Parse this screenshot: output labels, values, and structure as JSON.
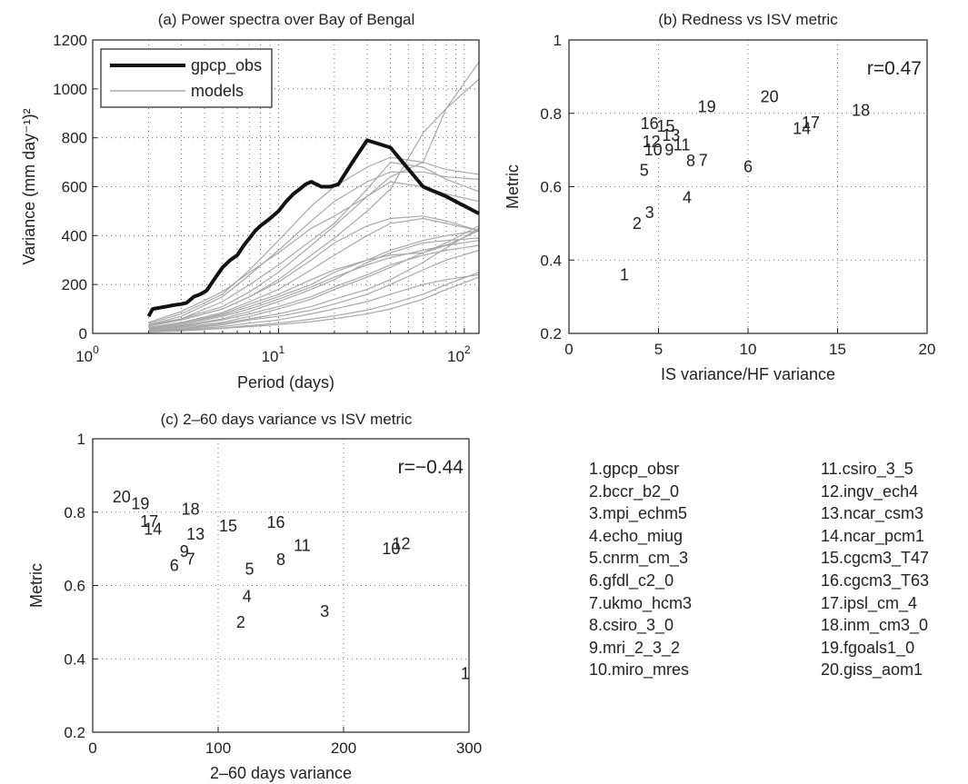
{
  "chart_data": [
    {
      "id": "a",
      "type": "line",
      "title": "(a) Power spectra over Bay of Bengal",
      "xlabel": "Period (days)",
      "ylabel": "Variance (mm day⁻¹)²",
      "xscale": "log",
      "xlim": [
        1,
        120
      ],
      "ylim": [
        0,
        1200
      ],
      "xticks": [
        1,
        10,
        100
      ],
      "xtick_labels": [
        {
          "base": "10",
          "exp": "0"
        },
        {
          "base": "10",
          "exp": "1"
        },
        {
          "base": "10",
          "exp": "2"
        }
      ],
      "yticks": [
        0,
        200,
        400,
        600,
        800,
        1000,
        1200
      ],
      "grid": true,
      "legend": {
        "position": "top-left",
        "entries": [
          "gpcp_obs",
          "models"
        ]
      },
      "colors": {
        "obs": "#111111",
        "models": "#a8a8a8"
      },
      "series": [
        {
          "name": "gpcp_obs",
          "x": [
            2,
            2.1,
            2.3,
            2.5,
            2.7,
            3,
            3.2,
            3.5,
            3.8,
            4.1,
            4.5,
            5,
            5.5,
            6,
            6.5,
            7,
            7.5,
            8,
            9,
            10,
            11,
            12,
            13,
            14,
            15,
            17,
            19,
            21,
            25,
            30,
            40,
            60,
            80,
            120
          ],
          "y": [
            70,
            100,
            105,
            110,
            115,
            120,
            125,
            150,
            160,
            175,
            220,
            270,
            300,
            320,
            360,
            390,
            420,
            440,
            470,
            500,
            540,
            570,
            590,
            610,
            620,
            600,
            600,
            610,
            700,
            790,
            760,
            600,
            560,
            490
          ]
        },
        {
          "name": "models",
          "x": [
            2,
            3,
            5,
            7,
            10,
            15,
            20,
            30,
            40,
            60,
            80,
            120
          ],
          "y": [
            35,
            60,
            110,
            170,
            250,
            360,
            440,
            560,
            640,
            700,
            920,
            1110
          ]
        },
        {
          "name": "models",
          "x": [
            2,
            3,
            5,
            7,
            10,
            15,
            20,
            30,
            40,
            60,
            80,
            120
          ],
          "y": [
            30,
            55,
            100,
            150,
            220,
            320,
            390,
            500,
            590,
            820,
            920,
            1040
          ]
        },
        {
          "name": "models",
          "x": [
            2,
            3,
            5,
            7,
            10,
            15,
            20,
            30,
            40,
            60,
            80,
            120
          ],
          "y": [
            40,
            80,
            160,
            260,
            380,
            520,
            600,
            680,
            720,
            700,
            670,
            650
          ]
        },
        {
          "name": "models",
          "x": [
            2,
            3,
            5,
            7,
            10,
            15,
            20,
            30,
            40,
            60,
            80,
            120
          ],
          "y": [
            35,
            70,
            150,
            240,
            340,
            460,
            540,
            620,
            660,
            660,
            640,
            630
          ]
        },
        {
          "name": "models",
          "x": [
            2,
            3,
            5,
            7,
            10,
            15,
            20,
            30,
            40,
            60,
            80,
            120
          ],
          "y": [
            45,
            90,
            170,
            250,
            330,
            430,
            480,
            560,
            620,
            600,
            570,
            540
          ]
        },
        {
          "name": "models",
          "x": [
            2,
            3,
            5,
            7,
            10,
            15,
            20,
            30,
            40,
            60,
            80,
            120
          ],
          "y": [
            30,
            60,
            130,
            200,
            280,
            380,
            450,
            590,
            700,
            680,
            630,
            580
          ]
        },
        {
          "name": "models",
          "x": [
            2,
            3,
            5,
            7,
            10,
            15,
            20,
            30,
            40,
            60,
            80,
            120
          ],
          "y": [
            30,
            55,
            100,
            150,
            210,
            300,
            370,
            440,
            470,
            480,
            460,
            420
          ]
        },
        {
          "name": "models",
          "x": [
            2,
            3,
            5,
            7,
            10,
            15,
            20,
            30,
            40,
            60,
            80,
            120
          ],
          "y": [
            25,
            45,
            85,
            130,
            180,
            260,
            320,
            400,
            450,
            470,
            450,
            420
          ]
        },
        {
          "name": "models",
          "x": [
            2,
            3,
            5,
            7,
            10,
            15,
            20,
            30,
            40,
            60,
            80,
            120
          ],
          "y": [
            20,
            40,
            80,
            120,
            160,
            220,
            260,
            300,
            320,
            330,
            360,
            420
          ]
        },
        {
          "name": "models",
          "x": [
            2,
            3,
            5,
            7,
            10,
            15,
            20,
            30,
            40,
            60,
            80,
            120
          ],
          "y": [
            22,
            40,
            75,
            110,
            150,
            200,
            250,
            300,
            340,
            380,
            400,
            420
          ]
        },
        {
          "name": "models",
          "x": [
            2,
            3,
            5,
            7,
            10,
            15,
            20,
            30,
            40,
            60,
            80,
            120
          ],
          "y": [
            18,
            35,
            70,
            100,
            140,
            190,
            230,
            280,
            310,
            340,
            360,
            380
          ]
        },
        {
          "name": "models",
          "x": [
            2,
            3,
            5,
            7,
            10,
            15,
            20,
            30,
            40,
            60,
            80,
            120
          ],
          "y": [
            15,
            28,
            55,
            80,
            110,
            150,
            190,
            240,
            280,
            320,
            340,
            360
          ]
        },
        {
          "name": "models",
          "x": [
            2,
            3,
            5,
            7,
            10,
            15,
            20,
            30,
            40,
            60,
            80,
            120
          ],
          "y": [
            12,
            25,
            45,
            70,
            100,
            140,
            180,
            230,
            270,
            330,
            370,
            440
          ]
        },
        {
          "name": "models",
          "x": [
            2,
            3,
            5,
            7,
            10,
            15,
            20,
            30,
            40,
            60,
            80,
            120
          ],
          "y": [
            10,
            20,
            40,
            60,
            80,
            110,
            140,
            180,
            220,
            290,
            350,
            430
          ]
        },
        {
          "name": "models",
          "x": [
            2,
            3,
            5,
            7,
            10,
            15,
            20,
            30,
            40,
            60,
            80,
            120
          ],
          "y": [
            10,
            18,
            35,
            55,
            70,
            95,
            120,
            160,
            200,
            260,
            300,
            340
          ]
        },
        {
          "name": "models",
          "x": [
            2,
            3,
            5,
            7,
            10,
            15,
            20,
            30,
            40,
            60,
            80,
            120
          ],
          "y": [
            8,
            15,
            28,
            42,
            55,
            80,
            100,
            130,
            160,
            200,
            220,
            240
          ]
        },
        {
          "name": "models",
          "x": [
            2,
            3,
            5,
            7,
            10,
            15,
            20,
            30,
            40,
            60,
            80,
            120
          ],
          "y": [
            6,
            12,
            22,
            32,
            42,
            58,
            72,
            95,
            120,
            160,
            200,
            250
          ]
        },
        {
          "name": "models",
          "x": [
            2,
            3,
            5,
            7,
            10,
            15,
            20,
            30,
            40,
            60,
            80,
            120
          ],
          "y": [
            5,
            10,
            20,
            28,
            36,
            48,
            60,
            80,
            100,
            140,
            180,
            230
          ]
        },
        {
          "name": "models",
          "x": [
            2,
            3,
            5,
            7,
            10,
            15,
            20,
            30,
            40,
            60,
            80,
            120
          ],
          "y": [
            15,
            30,
            60,
            90,
            130,
            180,
            220,
            290,
            330,
            370,
            380,
            390
          ]
        }
      ]
    },
    {
      "id": "b",
      "type": "scatter",
      "title": "(b) Redness vs ISV metric",
      "xlabel": "IS variance/HF variance",
      "ylabel": "Metric",
      "xlim": [
        0,
        20
      ],
      "ylim": [
        0.2,
        1
      ],
      "xticks": [
        0,
        5,
        10,
        15,
        20
      ],
      "ytick_labels": [
        "0.2",
        "0.4",
        "0.6",
        "0.8",
        "1"
      ],
      "grid": true,
      "annotation": "r=0.47",
      "points": [
        {
          "label": "1",
          "x": 3.1,
          "y": 0.36
        },
        {
          "label": "2",
          "x": 3.8,
          "y": 0.5
        },
        {
          "label": "3",
          "x": 4.5,
          "y": 0.53
        },
        {
          "label": "4",
          "x": 6.6,
          "y": 0.57
        },
        {
          "label": "5",
          "x": 4.2,
          "y": 0.645
        },
        {
          "label": "6",
          "x": 10.0,
          "y": 0.655
        },
        {
          "label": "7",
          "x": 7.5,
          "y": 0.672
        },
        {
          "label": "8",
          "x": 6.8,
          "y": 0.67
        },
        {
          "label": "9",
          "x": 5.6,
          "y": 0.7
        },
        {
          "label": "10",
          "x": 4.7,
          "y": 0.7
        },
        {
          "label": "11",
          "x": 6.3,
          "y": 0.714
        },
        {
          "label": "12",
          "x": 4.6,
          "y": 0.722
        },
        {
          "label": "13",
          "x": 5.7,
          "y": 0.74
        },
        {
          "label": "14",
          "x": 13.0,
          "y": 0.758
        },
        {
          "label": "15",
          "x": 5.4,
          "y": 0.765
        },
        {
          "label": "16",
          "x": 4.5,
          "y": 0.772
        },
        {
          "label": "17",
          "x": 13.5,
          "y": 0.775
        },
        {
          "label": "18",
          "x": 16.3,
          "y": 0.808
        },
        {
          "label": "19",
          "x": 7.7,
          "y": 0.818
        },
        {
          "label": "20",
          "x": 11.2,
          "y": 0.845
        }
      ]
    },
    {
      "id": "c",
      "type": "scatter",
      "title": "(c) 2–60 days variance vs ISV metric",
      "xlabel": "2–60 days variance",
      "ylabel": "Metric",
      "xlim": [
        0,
        300
      ],
      "ylim": [
        0.2,
        1
      ],
      "xticks": [
        0,
        100,
        200,
        300
      ],
      "ytick_labels": [
        "0.2",
        "0.4",
        "0.6",
        "0.8",
        "1"
      ],
      "grid": true,
      "annotation": "r=−0.44",
      "points": [
        {
          "label": "1",
          "x": 297,
          "y": 0.36
        },
        {
          "label": "2",
          "x": 118,
          "y": 0.5
        },
        {
          "label": "3",
          "x": 185,
          "y": 0.53
        },
        {
          "label": "4",
          "x": 123,
          "y": 0.57
        },
        {
          "label": "5",
          "x": 125,
          "y": 0.645
        },
        {
          "label": "6",
          "x": 65,
          "y": 0.655
        },
        {
          "label": "7",
          "x": 78,
          "y": 0.672
        },
        {
          "label": "8",
          "x": 150,
          "y": 0.67
        },
        {
          "label": "9",
          "x": 73,
          "y": 0.693
        },
        {
          "label": "10",
          "x": 238,
          "y": 0.7
        },
        {
          "label": "11",
          "x": 167,
          "y": 0.709
        },
        {
          "label": "12",
          "x": 246,
          "y": 0.714
        },
        {
          "label": "13",
          "x": 82,
          "y": 0.74
        },
        {
          "label": "14",
          "x": 48,
          "y": 0.754
        },
        {
          "label": "15",
          "x": 108,
          "y": 0.762
        },
        {
          "label": "16",
          "x": 146,
          "y": 0.772
        },
        {
          "label": "17",
          "x": 45,
          "y": 0.775
        },
        {
          "label": "18",
          "x": 78,
          "y": 0.808
        },
        {
          "label": "19",
          "x": 38,
          "y": 0.823
        },
        {
          "label": "20",
          "x": 23,
          "y": 0.842
        }
      ]
    }
  ],
  "model_list": {
    "col1": [
      "1.gpcp_obsr",
      "2.bccr_b2_0",
      "3.mpi_echm5",
      "4.echo_miug",
      "5.cnrm_cm_3",
      "6.gfdl_c2_0",
      "7.ukmo_hcm3",
      "8.csiro_3_0",
      "9.mri_2_3_2",
      "10.miro_mres"
    ],
    "col2": [
      "11.csiro_3_5",
      "12.ingv_ech4",
      "13.ncar_csm3",
      "14.ncar_pcm1",
      "15.cgcm3_T47",
      "16.cgcm3_T63",
      "17.ipsl_cm_4",
      "18.inm_cm3_0",
      "19.fgoals1_0",
      "20.giss_aom1"
    ]
  }
}
